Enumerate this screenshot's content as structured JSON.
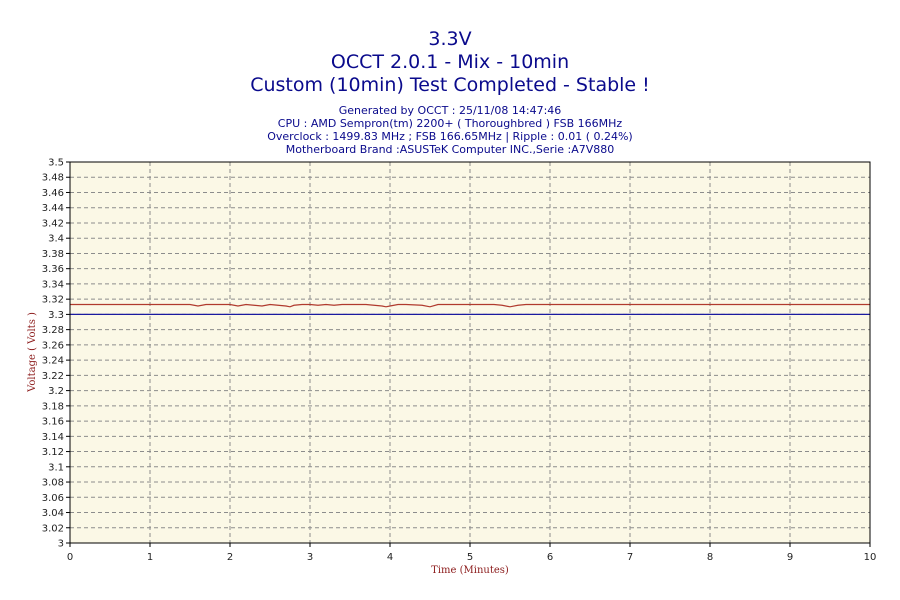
{
  "chart_data": {
    "type": "line",
    "title_lines": [
      "3.3V",
      "OCCT 2.0.1 - Mix - 10min",
      "Custom (10min) Test Completed - Stable !"
    ],
    "info_lines": [
      "Generated by OCCT : 25/11/08 14:47:46",
      "CPU : AMD Sempron(tm) 2200+ ( Thoroughbred ) FSB 166MHz",
      "Overclock : 1499.83 MHz ; FSB 166.65MHz | Ripple : 0.01 ( 0.24%)",
      "Motherboard Brand :ASUSTeK Computer INC.,Serie :A7V880"
    ],
    "xlabel": "Time (Minutes)",
    "ylabel": "Voltage ( Volts )",
    "xlim": [
      0,
      10
    ],
    "ylim": [
      3,
      3.5
    ],
    "x_ticks": [
      0,
      1,
      2,
      3,
      4,
      5,
      6,
      7,
      8,
      9,
      10
    ],
    "y_ticks": [
      3,
      3.02,
      3.04,
      3.06,
      3.08,
      3.1,
      3.12,
      3.14,
      3.16,
      3.18,
      3.2,
      3.22,
      3.24,
      3.26,
      3.28,
      3.3,
      3.32,
      3.34,
      3.36,
      3.38,
      3.4,
      3.42,
      3.44,
      3.46,
      3.48,
      3.5
    ],
    "y_tick_labels": [
      "3",
      "3.02",
      "3.04",
      "3.06",
      "3.08",
      "3.1",
      "3.12",
      "3.14",
      "3.16",
      "3.18",
      "3.2",
      "3.22",
      "3.24",
      "3.26",
      "3.28",
      "3.3",
      "3.32",
      "3.34",
      "3.36",
      "3.38",
      "3.4",
      "3.42",
      "3.44",
      "3.46",
      "3.48",
      "3.5"
    ],
    "grid": true,
    "colors": {
      "plot_background": "#fbf8e6",
      "voltage_line": "#b03a2e",
      "reference_line": "#1a1aa0",
      "title": "#0a0a8c",
      "axis_label": "#8b1a1a"
    },
    "series": [
      {
        "points": [
          [
            0,
            3.313
          ],
          [
            1.5,
            3.313
          ],
          [
            1.6,
            3.311
          ],
          [
            1.7,
            3.313
          ],
          [
            2.0,
            3.313
          ],
          [
            2.1,
            3.311
          ],
          [
            2.2,
            3.313
          ],
          [
            2.3,
            3.312
          ],
          [
            2.4,
            3.311
          ],
          [
            2.5,
            3.313
          ],
          [
            2.6,
            3.312
          ],
          [
            2.7,
            3.311
          ],
          [
            2.75,
            3.31
          ],
          [
            2.8,
            3.312
          ],
          [
            2.9,
            3.313
          ],
          [
            3.0,
            3.313
          ],
          [
            3.1,
            3.312
          ],
          [
            3.2,
            3.313
          ],
          [
            3.3,
            3.312
          ],
          [
            3.4,
            3.313
          ],
          [
            3.7,
            3.313
          ],
          [
            3.8,
            3.312
          ],
          [
            3.9,
            3.311
          ],
          [
            3.95,
            3.31
          ],
          [
            4.0,
            3.311
          ],
          [
            4.1,
            3.313
          ],
          [
            4.2,
            3.313
          ],
          [
            4.4,
            3.312
          ],
          [
            4.5,
            3.31
          ],
          [
            4.6,
            3.313
          ],
          [
            5.0,
            3.313
          ],
          [
            5.3,
            3.313
          ],
          [
            5.4,
            3.312
          ],
          [
            5.5,
            3.31
          ],
          [
            5.6,
            3.312
          ],
          [
            5.7,
            3.313
          ],
          [
            10,
            3.313
          ]
        ]
      },
      {
        "points": [
          [
            0,
            3.3
          ],
          [
            10,
            3.3
          ]
        ]
      }
    ]
  }
}
